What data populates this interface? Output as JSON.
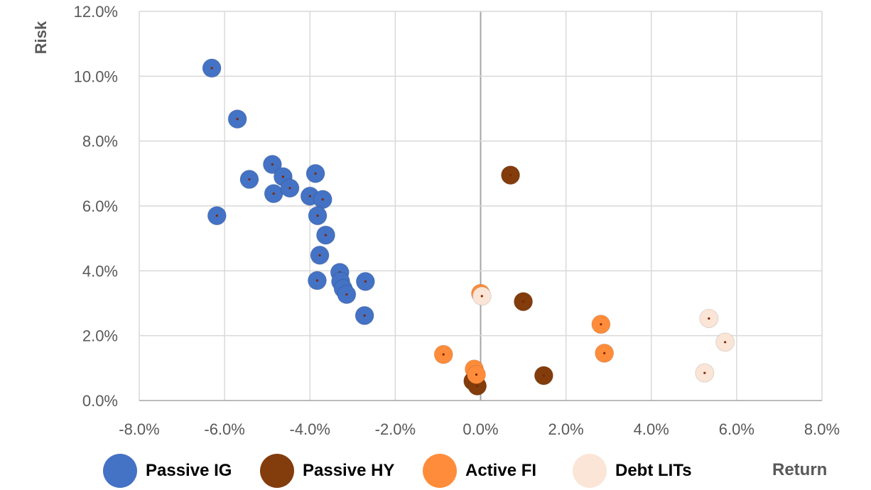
{
  "chart_data": {
    "type": "scatter",
    "xlabel": "Return",
    "ylabel": "Risk",
    "xlim": [
      -0.08,
      0.08
    ],
    "ylim": [
      0,
      0.12
    ],
    "x_ticks": [
      "-8.0%",
      "-6.0%",
      "-4.0%",
      "-2.0%",
      "0.0%",
      "2.0%",
      "4.0%",
      "6.0%",
      "8.0%"
    ],
    "y_ticks": [
      "0.0%",
      "2.0%",
      "4.0%",
      "6.0%",
      "8.0%",
      "10.0%",
      "12.0%"
    ],
    "grid": true,
    "legend_position": "bottom",
    "series": [
      {
        "name": "Passive IG",
        "color": "#4472C4",
        "points": [
          [
            -0.063,
            0.1025
          ],
          [
            -0.057,
            0.0868
          ],
          [
            -0.0488,
            0.0728
          ],
          [
            -0.0542,
            0.0682
          ],
          [
            -0.0463,
            0.069
          ],
          [
            -0.0485,
            0.0638
          ],
          [
            -0.0447,
            0.0655
          ],
          [
            -0.0618,
            0.057
          ],
          [
            -0.0387,
            0.07
          ],
          [
            -0.04,
            0.063
          ],
          [
            -0.037,
            0.062
          ],
          [
            -0.0382,
            0.057
          ],
          [
            -0.0363,
            0.051
          ],
          [
            -0.0377,
            0.0448
          ],
          [
            -0.0383,
            0.037
          ],
          [
            -0.033,
            0.0395
          ],
          [
            -0.0328,
            0.0367
          ],
          [
            -0.0322,
            0.0345
          ],
          [
            -0.0314,
            0.0327
          ],
          [
            -0.027,
            0.0367
          ],
          [
            -0.0272,
            0.0262
          ]
        ]
      },
      {
        "name": "Passive HY",
        "color": "#833C0B",
        "points": [
          [
            0.007,
            0.0695
          ],
          [
            0.01,
            0.0305
          ],
          [
            0.0148,
            0.0077
          ],
          [
            -0.0018,
            0.006
          ],
          [
            -0.0008,
            0.0045
          ]
        ]
      },
      {
        "name": "Active FI",
        "color": "#FF8C3A",
        "points": [
          [
            0.0,
            0.033
          ],
          [
            -0.0087,
            0.0142
          ],
          [
            -0.0015,
            0.0097
          ],
          [
            -0.001,
            0.008
          ],
          [
            0.0282,
            0.0235
          ],
          [
            0.029,
            0.0146
          ]
        ]
      },
      {
        "name": "Debt LITs",
        "color": "#FBE5D6",
        "points": [
          [
            0.0003,
            0.0322
          ],
          [
            0.0535,
            0.0253
          ],
          [
            0.0573,
            0.018
          ],
          [
            0.0525,
            0.0085
          ]
        ]
      }
    ]
  },
  "colors": {
    "grid": "#D9D9D9",
    "zero_line": "#A6A6A6",
    "center_dot": "#7F2704"
  }
}
